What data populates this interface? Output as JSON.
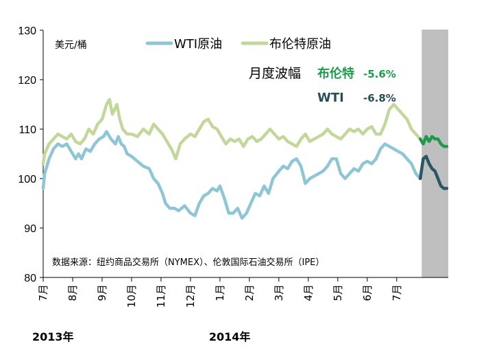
{
  "chart_data": {
    "type": "line",
    "unit_label": "美元/桶",
    "ylim": [
      80,
      130
    ],
    "yticks": [
      80,
      90,
      100,
      110,
      120,
      130
    ],
    "x_range": [
      0,
      13.75
    ],
    "month_labels": [
      "7月",
      "8月",
      "9月",
      "10月",
      "11月",
      "12月",
      "1月",
      "2月",
      "3月",
      "4月",
      "5月",
      "6月",
      "7月"
    ],
    "year_labels": [
      {
        "text": "2013年",
        "month_index": 0
      },
      {
        "text": "2014年",
        "month_index": 6
      }
    ],
    "shaded_region": {
      "from": 12.85,
      "to": 13.75,
      "color": "#bfbfbf"
    },
    "source_note": "数据来源：纽约商品交易所（NYMEX）、伦敦国际石油交易所（IPE）",
    "annotation": {
      "title": "月度波幅",
      "rows": [
        {
          "label": "布伦特",
          "value": "-5.6%",
          "color": "#1e9a4c"
        },
        {
          "label": "WTI",
          "value": "-6.8%",
          "color": "#234e5a"
        }
      ]
    },
    "series": [
      {
        "name": "WTI原油",
        "color": "#8ec6d6",
        "highlight_color": "#2b5663",
        "x": [
          0.0,
          0.05,
          0.2,
          0.35,
          0.5,
          0.65,
          0.8,
          0.95,
          1.1,
          1.2,
          1.3,
          1.45,
          1.6,
          1.75,
          1.9,
          2.05,
          2.15,
          2.3,
          2.45,
          2.55,
          2.65,
          2.75,
          2.85,
          3.0,
          3.2,
          3.4,
          3.6,
          3.75,
          3.9,
          4.05,
          4.15,
          4.3,
          4.45,
          4.6,
          4.8,
          5.0,
          5.15,
          5.3,
          5.45,
          5.6,
          5.75,
          5.9,
          6.0,
          6.15,
          6.3,
          6.45,
          6.6,
          6.75,
          6.9,
          7.05,
          7.2,
          7.35,
          7.5,
          7.65,
          7.8,
          8.0,
          8.15,
          8.3,
          8.45,
          8.6,
          8.75,
          8.9,
          9.05,
          9.2,
          9.35,
          9.5,
          9.65,
          9.8,
          9.95,
          10.1,
          10.25,
          10.4,
          10.55,
          10.7,
          10.85,
          11.0,
          11.15,
          11.3,
          11.45,
          11.6,
          11.75,
          11.9,
          12.05,
          12.2,
          12.35,
          12.5,
          12.65,
          12.8,
          12.9,
          13.0,
          13.1,
          13.2,
          13.3,
          13.4,
          13.5,
          13.6,
          13.7
        ],
        "values": [
          98,
          101,
          104,
          106,
          107,
          106.5,
          107,
          105.5,
          104,
          105,
          104,
          106,
          105.5,
          107,
          108,
          108.5,
          109.5,
          108,
          107,
          108.5,
          107,
          106.5,
          105,
          104.5,
          103.5,
          102.5,
          102,
          100,
          99,
          97,
          95,
          94,
          94,
          93.5,
          94.5,
          93,
          92.5,
          95,
          96.5,
          97,
          98,
          97.5,
          98.5,
          96,
          93,
          93,
          94,
          92,
          93,
          95,
          97,
          96.5,
          98.5,
          97,
          100,
          101.5,
          102.5,
          102,
          103.5,
          104,
          102.5,
          99,
          100,
          100.5,
          101,
          101.5,
          102.5,
          104,
          104,
          101,
          100,
          101,
          102,
          101.5,
          103,
          103.5,
          103,
          104,
          106,
          107,
          106.5,
          106,
          105.5,
          105,
          104,
          103,
          101,
          100,
          104,
          104.5,
          103,
          102,
          101.5,
          100,
          98.5,
          98,
          98
        ]
      },
      {
        "name": "布伦特原油",
        "color": "#c4d79b",
        "highlight_color": "#1e9a4c",
        "x": [
          0.0,
          0.05,
          0.2,
          0.35,
          0.5,
          0.65,
          0.8,
          0.95,
          1.1,
          1.25,
          1.4,
          1.55,
          1.7,
          1.85,
          2.0,
          2.15,
          2.25,
          2.35,
          2.5,
          2.6,
          2.7,
          2.85,
          3.0,
          3.2,
          3.4,
          3.6,
          3.75,
          3.9,
          4.05,
          4.2,
          4.35,
          4.5,
          4.65,
          4.8,
          5.0,
          5.15,
          5.3,
          5.45,
          5.6,
          5.75,
          5.9,
          6.05,
          6.2,
          6.35,
          6.5,
          6.65,
          6.8,
          6.95,
          7.1,
          7.25,
          7.4,
          7.55,
          7.7,
          7.85,
          8.0,
          8.15,
          8.3,
          8.45,
          8.6,
          8.75,
          8.9,
          9.05,
          9.2,
          9.35,
          9.5,
          9.65,
          9.8,
          9.95,
          10.1,
          10.25,
          10.4,
          10.55,
          10.7,
          10.85,
          11.0,
          11.15,
          11.3,
          11.45,
          11.6,
          11.75,
          11.9,
          12.05,
          12.2,
          12.35,
          12.5,
          12.65,
          12.8,
          12.9,
          13.0,
          13.1,
          13.2,
          13.3,
          13.4,
          13.5,
          13.6,
          13.7
        ],
        "values": [
          103,
          105,
          107,
          108,
          109,
          108.5,
          108,
          109,
          107.5,
          107,
          108,
          110,
          109,
          111,
          112,
          115,
          116,
          113,
          115,
          112,
          110,
          109,
          109,
          108.5,
          110,
          109,
          111,
          110,
          109,
          107.5,
          106,
          104,
          107,
          108,
          109,
          108.5,
          110,
          111.5,
          112,
          110.5,
          110,
          108.5,
          107,
          108,
          107.5,
          108,
          106.5,
          108,
          108.5,
          107.5,
          108,
          109,
          110,
          109,
          108,
          108.5,
          107.5,
          107,
          106.5,
          108,
          109,
          107.5,
          108,
          108.5,
          109,
          110,
          109,
          108.5,
          108,
          109,
          110,
          109.5,
          110,
          109,
          110,
          110.5,
          109,
          109,
          111,
          114,
          115,
          114,
          113,
          112,
          110,
          109,
          108,
          107,
          108.5,
          107.5,
          108.5,
          108,
          108,
          107,
          106.5,
          106.5
        ]
      }
    ]
  }
}
